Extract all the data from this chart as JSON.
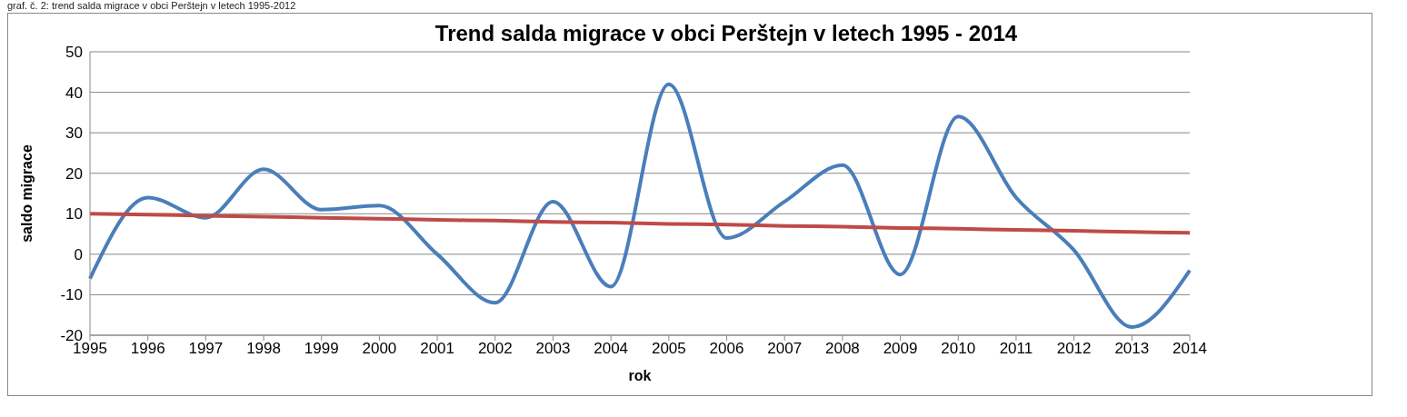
{
  "chart_data": {
    "type": "line",
    "title": "Trend salda migrace v obci Perštejn v letech 1995 - 2014",
    "xlabel": "rok",
    "ylabel": "saldo migrace",
    "annotations": [
      "graf. č. 2: trend salda migrace v obci Perštejn v letech 1995-2012"
    ],
    "categories": [
      "1995",
      "1996",
      "1997",
      "1998",
      "1999",
      "2000",
      "2001",
      "2002",
      "2003",
      "2004",
      "2005",
      "2006",
      "2007",
      "2008",
      "2009",
      "2010",
      "2011",
      "2012",
      "2013",
      "2014"
    ],
    "series": [
      {
        "color": "#4a7ebb",
        "values": [
          -6,
          14,
          9,
          21,
          11,
          12,
          0,
          -12,
          13,
          -8,
          42,
          4,
          13,
          22,
          -5,
          34,
          14,
          1,
          -18,
          -4
        ]
      },
      {
        "color": "#be4b48",
        "values": [
          10,
          9.8,
          9.5,
          9.3,
          9,
          8.8,
          8.5,
          8.3,
          8,
          7.8,
          7.5,
          7.3,
          7,
          6.8,
          6.5,
          6.3,
          6,
          5.8,
          5.5,
          5.3
        ]
      }
    ],
    "ylim": [
      -20,
      50
    ],
    "yticks": [
      -20,
      -10,
      0,
      10,
      20,
      30,
      40,
      50
    ],
    "grid": "y",
    "marker": "none",
    "line_style": "solid"
  }
}
